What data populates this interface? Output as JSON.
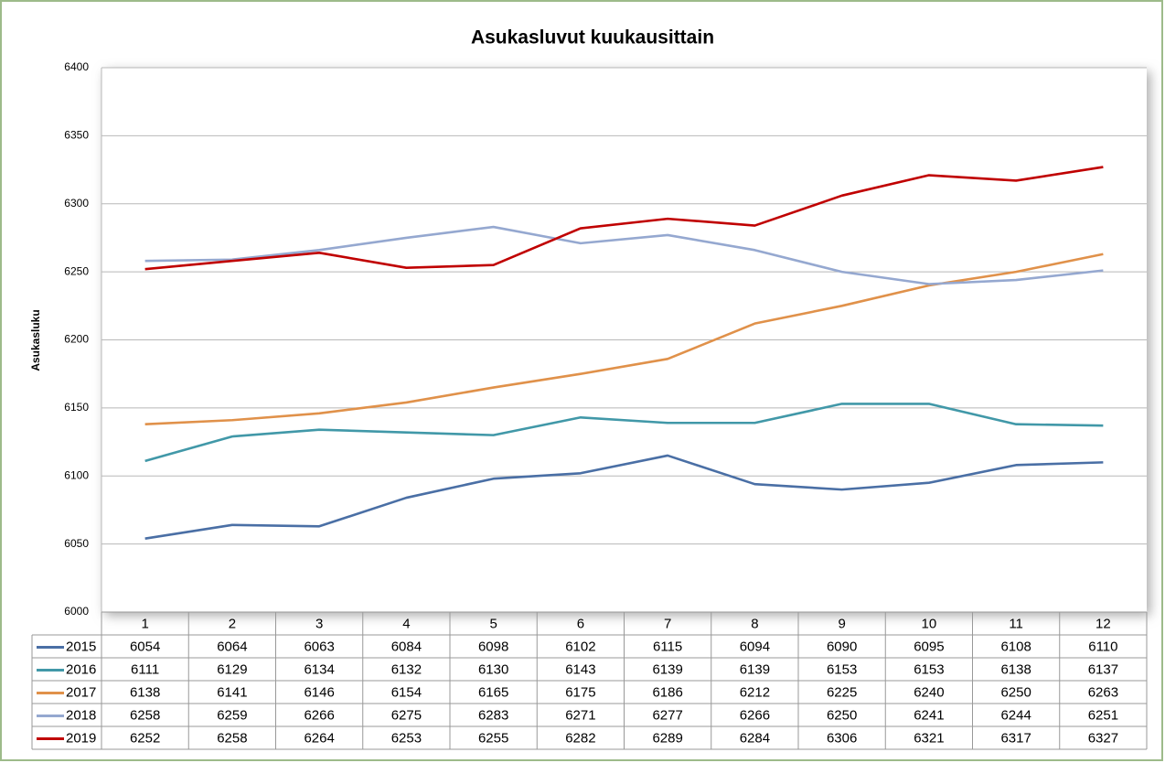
{
  "chart_data": {
    "type": "line",
    "title": "Asukasluvut kuukausittain",
    "y_label": "Asukasluku",
    "categories": [
      "1",
      "2",
      "3",
      "4",
      "5",
      "6",
      "7",
      "8",
      "9",
      "10",
      "11",
      "12"
    ],
    "ylim": [
      6000,
      6400
    ],
    "yticks": [
      6000,
      6050,
      6100,
      6150,
      6200,
      6250,
      6300,
      6350,
      6400
    ],
    "grid": true,
    "series": [
      {
        "name": "2015",
        "color": "#4a6fa5",
        "values": [
          6054,
          6064,
          6063,
          6084,
          6098,
          6102,
          6115,
          6094,
          6090,
          6095,
          6108,
          6110
        ]
      },
      {
        "name": "2016",
        "color": "#4198a8",
        "values": [
          6111,
          6129,
          6134,
          6132,
          6130,
          6143,
          6139,
          6139,
          6153,
          6153,
          6138,
          6137
        ]
      },
      {
        "name": "2017",
        "color": "#e0914a",
        "values": [
          6138,
          6141,
          6146,
          6154,
          6165,
          6175,
          6186,
          6212,
          6225,
          6240,
          6250,
          6263
        ]
      },
      {
        "name": "2018",
        "color": "#95a8d0",
        "values": [
          6258,
          6259,
          6266,
          6275,
          6283,
          6271,
          6277,
          6266,
          6250,
          6241,
          6244,
          6251
        ]
      },
      {
        "name": "2019",
        "color": "#c00000",
        "values": [
          6252,
          6258,
          6264,
          6253,
          6255,
          6282,
          6289,
          6284,
          6306,
          6321,
          6317,
          6327
        ]
      }
    ]
  }
}
